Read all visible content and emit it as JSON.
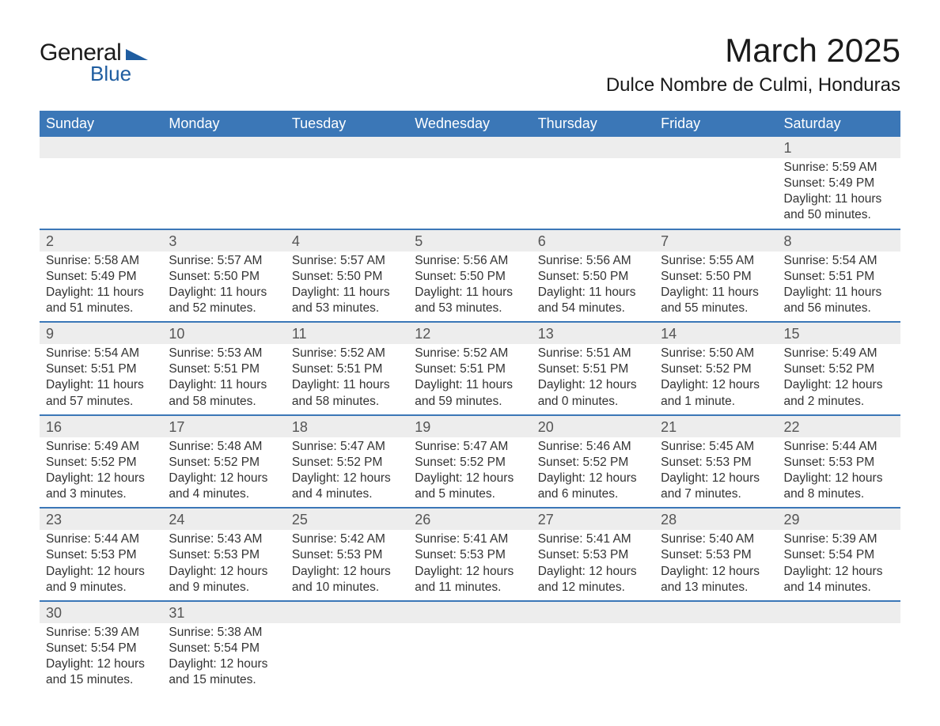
{
  "logo": {
    "text_general": "General",
    "text_blue": "Blue",
    "brand_color": "#1f5da0"
  },
  "header": {
    "month_title": "March 2025",
    "location": "Dulce Nombre de Culmi, Honduras"
  },
  "colors": {
    "header_bg": "#3b77b7",
    "header_text": "#ffffff",
    "daynum_bg": "#ededed",
    "row_border": "#3b77b7",
    "body_text": "#333333",
    "title_text": "#1a1a1a"
  },
  "calendar": {
    "days_of_week": [
      "Sunday",
      "Monday",
      "Tuesday",
      "Wednesday",
      "Thursday",
      "Friday",
      "Saturday"
    ],
    "weeks": [
      [
        null,
        null,
        null,
        null,
        null,
        null,
        {
          "n": "1",
          "sr": "Sunrise: 5:59 AM",
          "ss": "Sunset: 5:49 PM",
          "dl": "Daylight: 11 hours and 50 minutes."
        }
      ],
      [
        {
          "n": "2",
          "sr": "Sunrise: 5:58 AM",
          "ss": "Sunset: 5:49 PM",
          "dl": "Daylight: 11 hours and 51 minutes."
        },
        {
          "n": "3",
          "sr": "Sunrise: 5:57 AM",
          "ss": "Sunset: 5:50 PM",
          "dl": "Daylight: 11 hours and 52 minutes."
        },
        {
          "n": "4",
          "sr": "Sunrise: 5:57 AM",
          "ss": "Sunset: 5:50 PM",
          "dl": "Daylight: 11 hours and 53 minutes."
        },
        {
          "n": "5",
          "sr": "Sunrise: 5:56 AM",
          "ss": "Sunset: 5:50 PM",
          "dl": "Daylight: 11 hours and 53 minutes."
        },
        {
          "n": "6",
          "sr": "Sunrise: 5:56 AM",
          "ss": "Sunset: 5:50 PM",
          "dl": "Daylight: 11 hours and 54 minutes."
        },
        {
          "n": "7",
          "sr": "Sunrise: 5:55 AM",
          "ss": "Sunset: 5:50 PM",
          "dl": "Daylight: 11 hours and 55 minutes."
        },
        {
          "n": "8",
          "sr": "Sunrise: 5:54 AM",
          "ss": "Sunset: 5:51 PM",
          "dl": "Daylight: 11 hours and 56 minutes."
        }
      ],
      [
        {
          "n": "9",
          "sr": "Sunrise: 5:54 AM",
          "ss": "Sunset: 5:51 PM",
          "dl": "Daylight: 11 hours and 57 minutes."
        },
        {
          "n": "10",
          "sr": "Sunrise: 5:53 AM",
          "ss": "Sunset: 5:51 PM",
          "dl": "Daylight: 11 hours and 58 minutes."
        },
        {
          "n": "11",
          "sr": "Sunrise: 5:52 AM",
          "ss": "Sunset: 5:51 PM",
          "dl": "Daylight: 11 hours and 58 minutes."
        },
        {
          "n": "12",
          "sr": "Sunrise: 5:52 AM",
          "ss": "Sunset: 5:51 PM",
          "dl": "Daylight: 11 hours and 59 minutes."
        },
        {
          "n": "13",
          "sr": "Sunrise: 5:51 AM",
          "ss": "Sunset: 5:51 PM",
          "dl": "Daylight: 12 hours and 0 minutes."
        },
        {
          "n": "14",
          "sr": "Sunrise: 5:50 AM",
          "ss": "Sunset: 5:52 PM",
          "dl": "Daylight: 12 hours and 1 minute."
        },
        {
          "n": "15",
          "sr": "Sunrise: 5:49 AM",
          "ss": "Sunset: 5:52 PM",
          "dl": "Daylight: 12 hours and 2 minutes."
        }
      ],
      [
        {
          "n": "16",
          "sr": "Sunrise: 5:49 AM",
          "ss": "Sunset: 5:52 PM",
          "dl": "Daylight: 12 hours and 3 minutes."
        },
        {
          "n": "17",
          "sr": "Sunrise: 5:48 AM",
          "ss": "Sunset: 5:52 PM",
          "dl": "Daylight: 12 hours and 4 minutes."
        },
        {
          "n": "18",
          "sr": "Sunrise: 5:47 AM",
          "ss": "Sunset: 5:52 PM",
          "dl": "Daylight: 12 hours and 4 minutes."
        },
        {
          "n": "19",
          "sr": "Sunrise: 5:47 AM",
          "ss": "Sunset: 5:52 PM",
          "dl": "Daylight: 12 hours and 5 minutes."
        },
        {
          "n": "20",
          "sr": "Sunrise: 5:46 AM",
          "ss": "Sunset: 5:52 PM",
          "dl": "Daylight: 12 hours and 6 minutes."
        },
        {
          "n": "21",
          "sr": "Sunrise: 5:45 AM",
          "ss": "Sunset: 5:53 PM",
          "dl": "Daylight: 12 hours and 7 minutes."
        },
        {
          "n": "22",
          "sr": "Sunrise: 5:44 AM",
          "ss": "Sunset: 5:53 PM",
          "dl": "Daylight: 12 hours and 8 minutes."
        }
      ],
      [
        {
          "n": "23",
          "sr": "Sunrise: 5:44 AM",
          "ss": "Sunset: 5:53 PM",
          "dl": "Daylight: 12 hours and 9 minutes."
        },
        {
          "n": "24",
          "sr": "Sunrise: 5:43 AM",
          "ss": "Sunset: 5:53 PM",
          "dl": "Daylight: 12 hours and 9 minutes."
        },
        {
          "n": "25",
          "sr": "Sunrise: 5:42 AM",
          "ss": "Sunset: 5:53 PM",
          "dl": "Daylight: 12 hours and 10 minutes."
        },
        {
          "n": "26",
          "sr": "Sunrise: 5:41 AM",
          "ss": "Sunset: 5:53 PM",
          "dl": "Daylight: 12 hours and 11 minutes."
        },
        {
          "n": "27",
          "sr": "Sunrise: 5:41 AM",
          "ss": "Sunset: 5:53 PM",
          "dl": "Daylight: 12 hours and 12 minutes."
        },
        {
          "n": "28",
          "sr": "Sunrise: 5:40 AM",
          "ss": "Sunset: 5:53 PM",
          "dl": "Daylight: 12 hours and 13 minutes."
        },
        {
          "n": "29",
          "sr": "Sunrise: 5:39 AM",
          "ss": "Sunset: 5:54 PM",
          "dl": "Daylight: 12 hours and 14 minutes."
        }
      ],
      [
        {
          "n": "30",
          "sr": "Sunrise: 5:39 AM",
          "ss": "Sunset: 5:54 PM",
          "dl": "Daylight: 12 hours and 15 minutes."
        },
        {
          "n": "31",
          "sr": "Sunrise: 5:38 AM",
          "ss": "Sunset: 5:54 PM",
          "dl": "Daylight: 12 hours and 15 minutes."
        },
        null,
        null,
        null,
        null,
        null
      ]
    ]
  }
}
